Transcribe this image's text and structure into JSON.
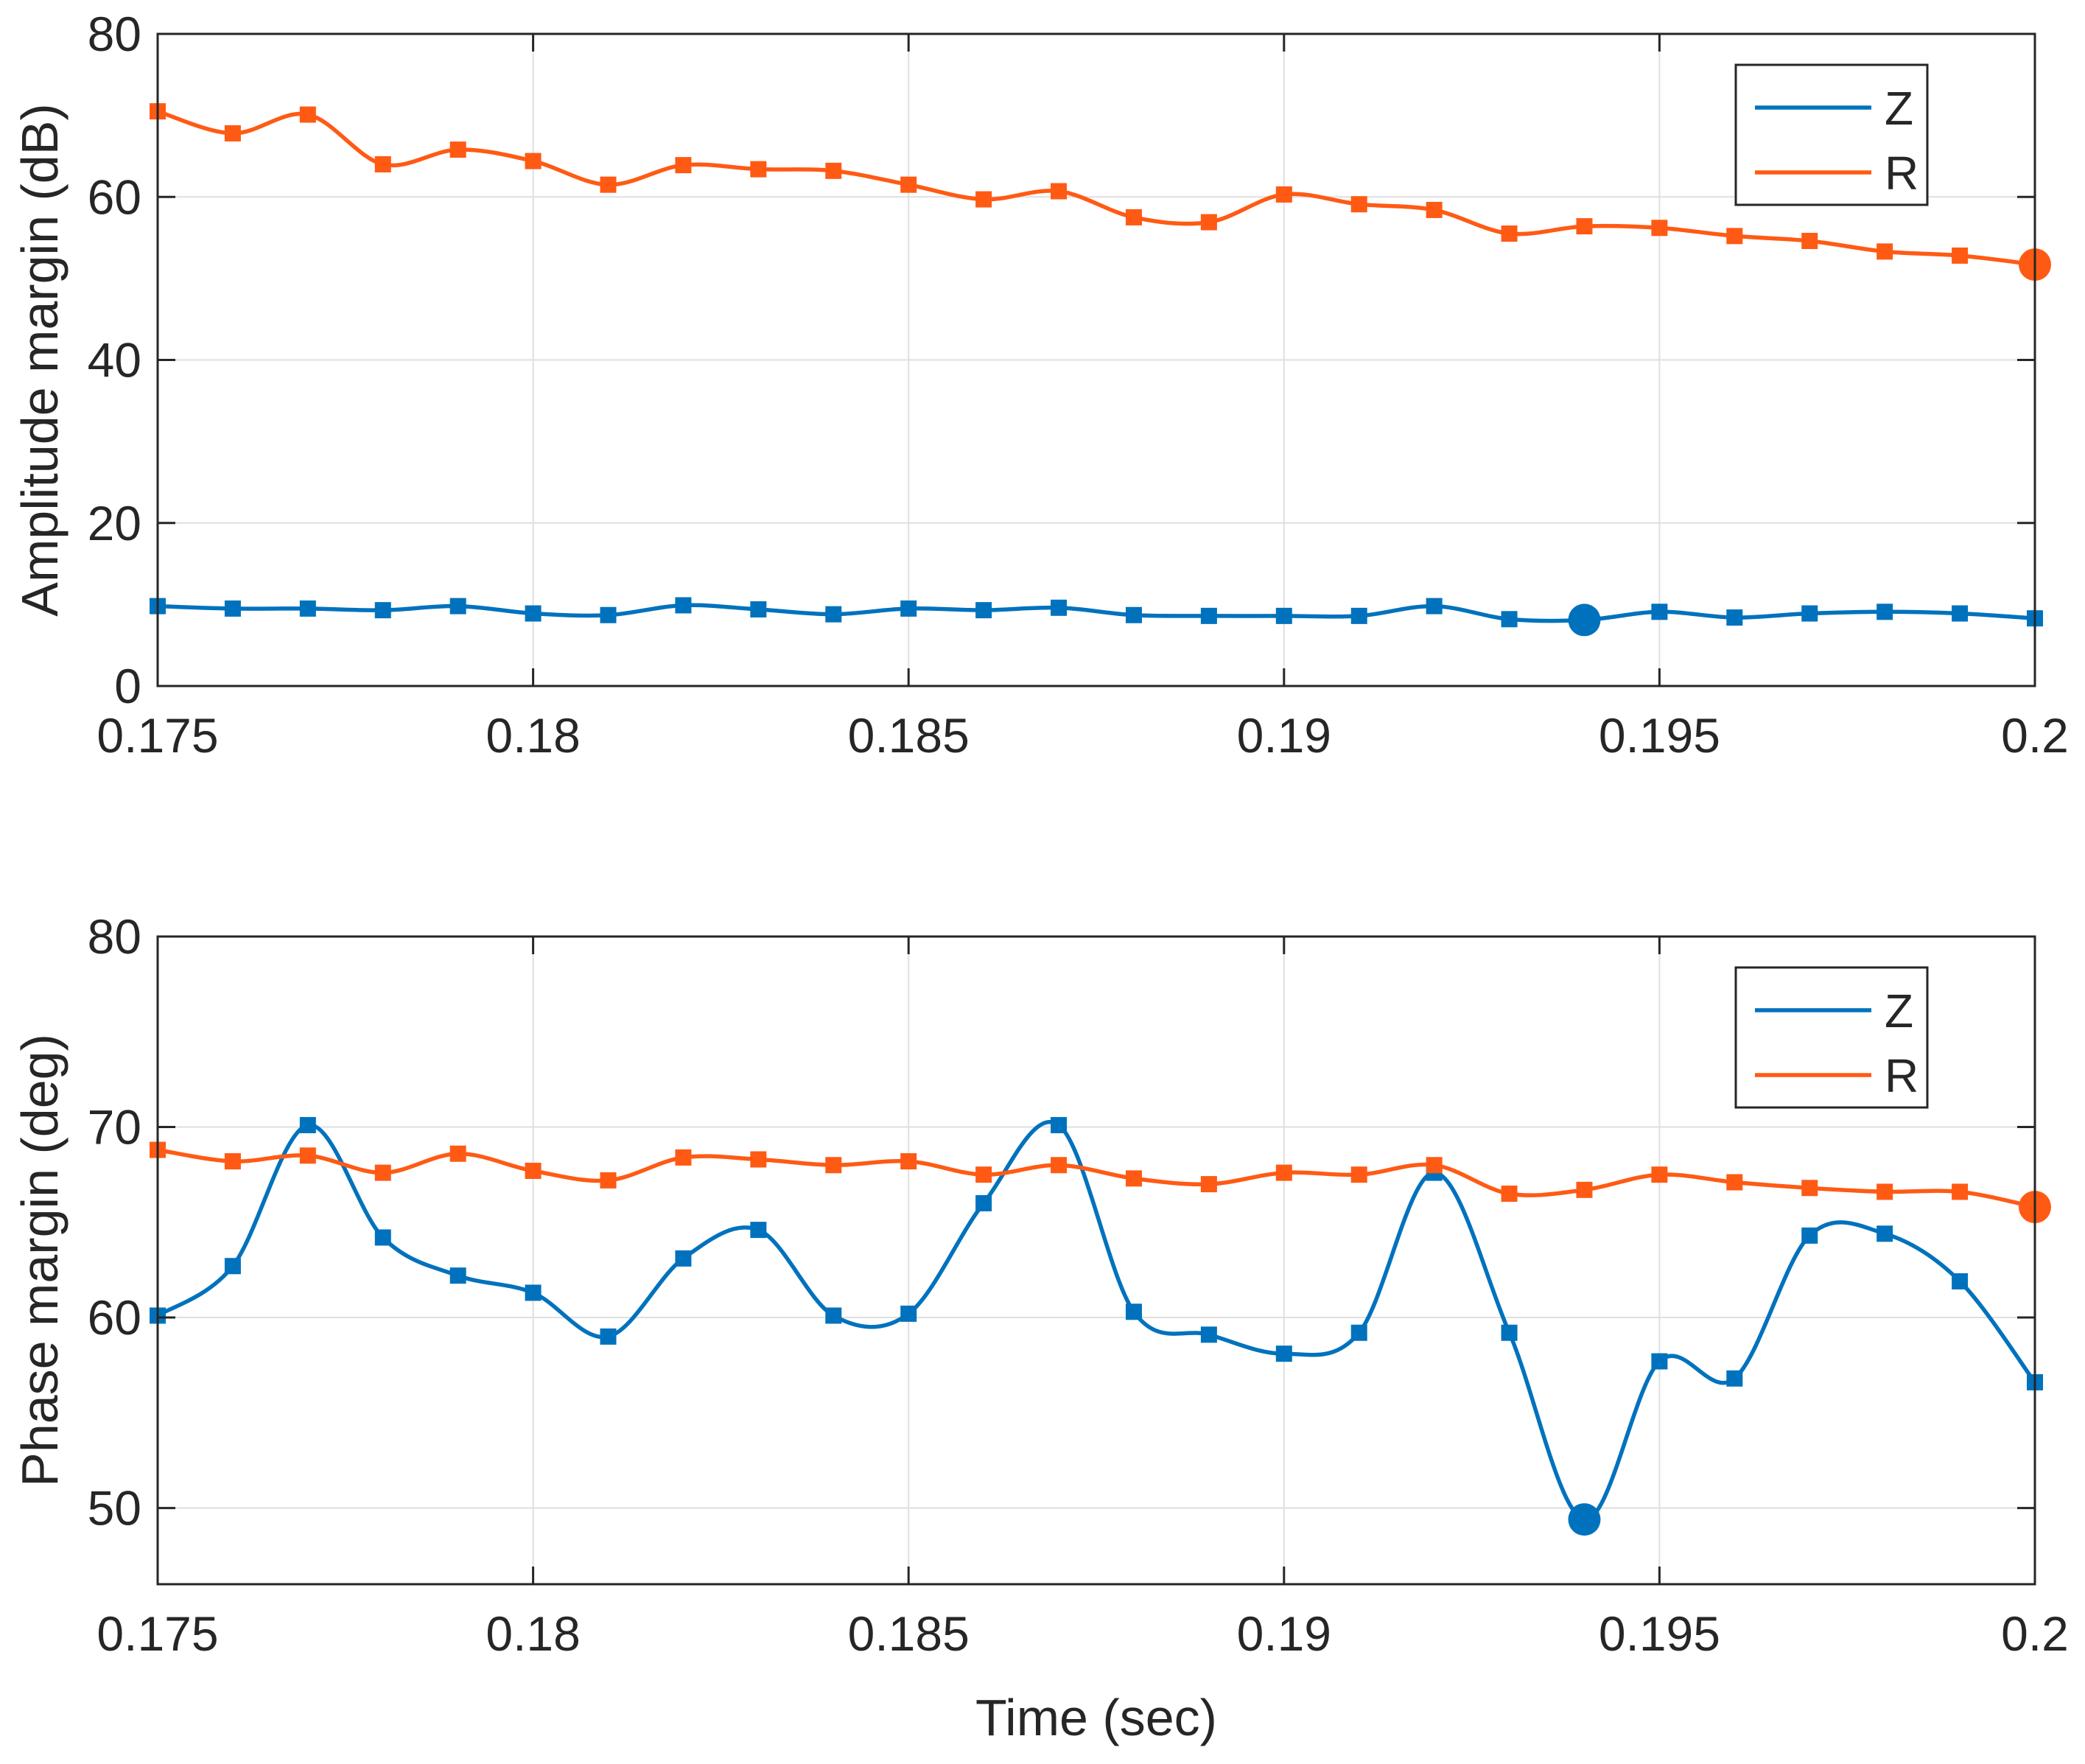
{
  "chart_data": [
    {
      "type": "line",
      "title": "",
      "xlabel": "",
      "ylabel": "Amplitude margin (dB)",
      "xlim": [
        0.175,
        0.2
      ],
      "ylim": [
        0,
        80
      ],
      "xticks": [
        "0.175",
        "0.18",
        "0.185",
        "0.19",
        "0.195",
        "0.2"
      ],
      "yticks": [
        "0",
        "20",
        "40",
        "60",
        "80"
      ],
      "grid": true,
      "legend_position": "top-right",
      "x": [
        0.175,
        0.176,
        0.177,
        0.178,
        0.179,
        0.18,
        0.181,
        0.182,
        0.183,
        0.184,
        0.185,
        0.186,
        0.187,
        0.188,
        0.189,
        0.19,
        0.191,
        0.192,
        0.193,
        0.194,
        0.195,
        0.196,
        0.197,
        0.198,
        0.199,
        0.2
      ],
      "series": [
        {
          "name": "Z",
          "color": "#0072BD",
          "values": [
            9.8,
            9.5,
            9.5,
            9.3,
            9.8,
            8.9,
            8.7,
            9.9,
            9.4,
            8.8,
            9.5,
            9.3,
            9.6,
            8.7,
            8.6,
            8.6,
            8.6,
            9.8,
            8.2,
            8.1,
            9.1,
            8.4,
            8.9,
            9.1,
            8.9,
            8.3
          ],
          "highlight_index": 19
        },
        {
          "name": "R",
          "color": "#FF5A14",
          "values": [
            70.5,
            67.8,
            70.1,
            64.0,
            65.8,
            64.4,
            61.5,
            63.9,
            63.4,
            63.2,
            61.5,
            59.7,
            60.7,
            57.5,
            56.9,
            60.3,
            59.1,
            58.4,
            55.5,
            56.4,
            56.2,
            55.2,
            54.6,
            53.3,
            52.8,
            51.7
          ],
          "highlight_index": 25
        }
      ]
    },
    {
      "type": "line",
      "title": "",
      "xlabel": "Time (sec)",
      "ylabel": "Phase margin (deg)",
      "xlim": [
        0.175,
        0.2
      ],
      "ylim": [
        46,
        80
      ],
      "xticks": [
        "0.175",
        "0.18",
        "0.185",
        "0.19",
        "0.195",
        "0.2"
      ],
      "yticks": [
        "50",
        "60",
        "70",
        "80"
      ],
      "grid": true,
      "legend_position": "top-right",
      "x": [
        0.175,
        0.176,
        0.177,
        0.178,
        0.179,
        0.18,
        0.181,
        0.182,
        0.183,
        0.184,
        0.185,
        0.186,
        0.187,
        0.188,
        0.189,
        0.19,
        0.191,
        0.192,
        0.193,
        0.194,
        0.195,
        0.196,
        0.197,
        0.198,
        0.199,
        0.2
      ],
      "series": [
        {
          "name": "Z",
          "color": "#0072BD",
          "values": [
            60.1,
            62.7,
            70.1,
            64.2,
            62.2,
            61.3,
            59.0,
            63.1,
            64.6,
            60.1,
            60.2,
            66.0,
            70.1,
            60.3,
            59.1,
            58.1,
            59.2,
            67.6,
            59.2,
            49.4,
            57.7,
            56.8,
            64.3,
            64.4,
            61.9,
            56.6
          ],
          "highlight_index": 19
        },
        {
          "name": "R",
          "color": "#FF5A14",
          "values": [
            68.8,
            68.2,
            68.5,
            67.6,
            68.6,
            67.7,
            67.2,
            68.4,
            68.3,
            68.0,
            68.2,
            67.5,
            68.0,
            67.3,
            67.0,
            67.6,
            67.5,
            68.0,
            66.5,
            66.7,
            67.5,
            67.1,
            66.8,
            66.6,
            66.6,
            65.8
          ],
          "highlight_index": 25
        }
      ]
    }
  ]
}
